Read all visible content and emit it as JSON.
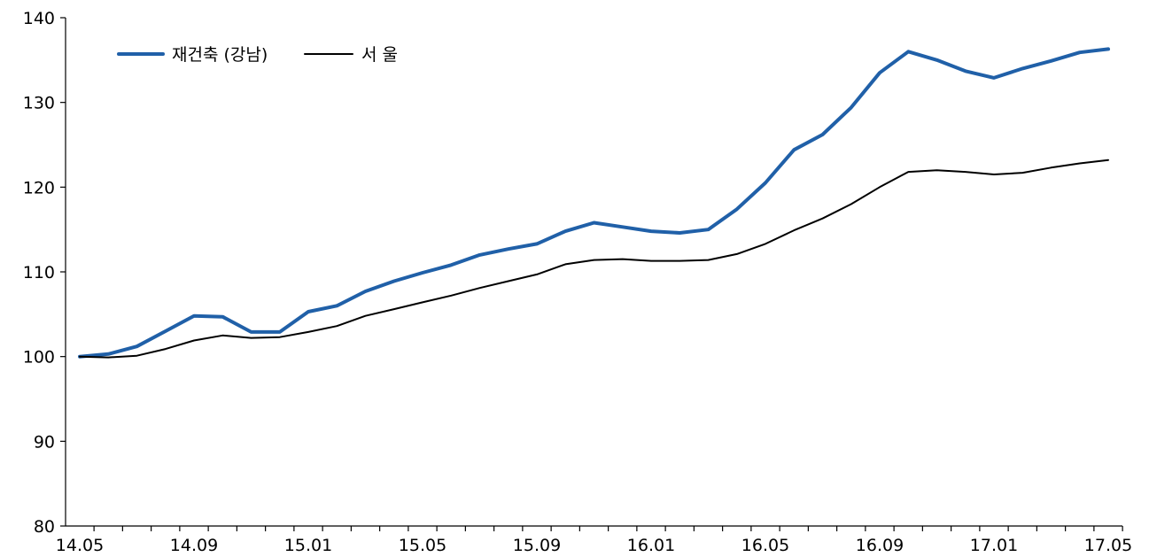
{
  "chart_data": {
    "type": "line",
    "title": "",
    "xlabel": "",
    "ylabel": "",
    "ylim": [
      80,
      140
    ],
    "yticks": [
      "80",
      "90",
      "100",
      "110",
      "120",
      "130",
      "140"
    ],
    "x_tick_labels": [
      "14.05",
      "14.09",
      "15.01",
      "15.05",
      "15.09",
      "16.01",
      "16.05",
      "16.09",
      "17.01",
      "17.05"
    ],
    "x": [
      "14.05",
      "14.06",
      "14.07",
      "14.08",
      "14.09",
      "14.10",
      "14.11",
      "14.12",
      "15.01",
      "15.02",
      "15.03",
      "15.04",
      "15.05",
      "15.06",
      "15.07",
      "15.08",
      "15.09",
      "15.10",
      "15.11",
      "15.12",
      "16.01",
      "16.02",
      "16.03",
      "16.04",
      "16.05",
      "16.06",
      "16.07",
      "16.08",
      "16.09",
      "16.10",
      "16.11",
      "16.12",
      "17.01",
      "17.02",
      "17.03",
      "17.04",
      "17.05"
    ],
    "legend_position": "top-left",
    "grid": false,
    "series": [
      {
        "name": "재건축 (강남)",
        "color": "#2060a8",
        "values": [
          100.0,
          100.3,
          101.2,
          103.0,
          104.8,
          104.7,
          102.9,
          102.9,
          105.3,
          106.0,
          107.7,
          108.9,
          109.9,
          110.8,
          112.0,
          112.7,
          113.3,
          114.8,
          115.8,
          115.3,
          114.8,
          114.6,
          115.0,
          117.4,
          120.5,
          124.4,
          126.2,
          129.4,
          133.5,
          136.0,
          135.0,
          133.7,
          132.9,
          134.0,
          134.9,
          135.9,
          136.3
        ]
      },
      {
        "name": "서 울",
        "color": "#000000",
        "values": [
          100.0,
          99.9,
          100.1,
          100.9,
          101.9,
          102.5,
          102.2,
          102.3,
          102.9,
          103.6,
          104.8,
          105.6,
          106.4,
          107.2,
          108.1,
          108.9,
          109.7,
          110.9,
          111.4,
          111.5,
          111.3,
          111.3,
          111.4,
          112.1,
          113.3,
          114.9,
          116.3,
          118.0,
          120.0,
          121.8,
          122.0,
          121.8,
          121.5,
          121.7,
          122.3,
          122.8,
          123.2
        ]
      }
    ]
  }
}
